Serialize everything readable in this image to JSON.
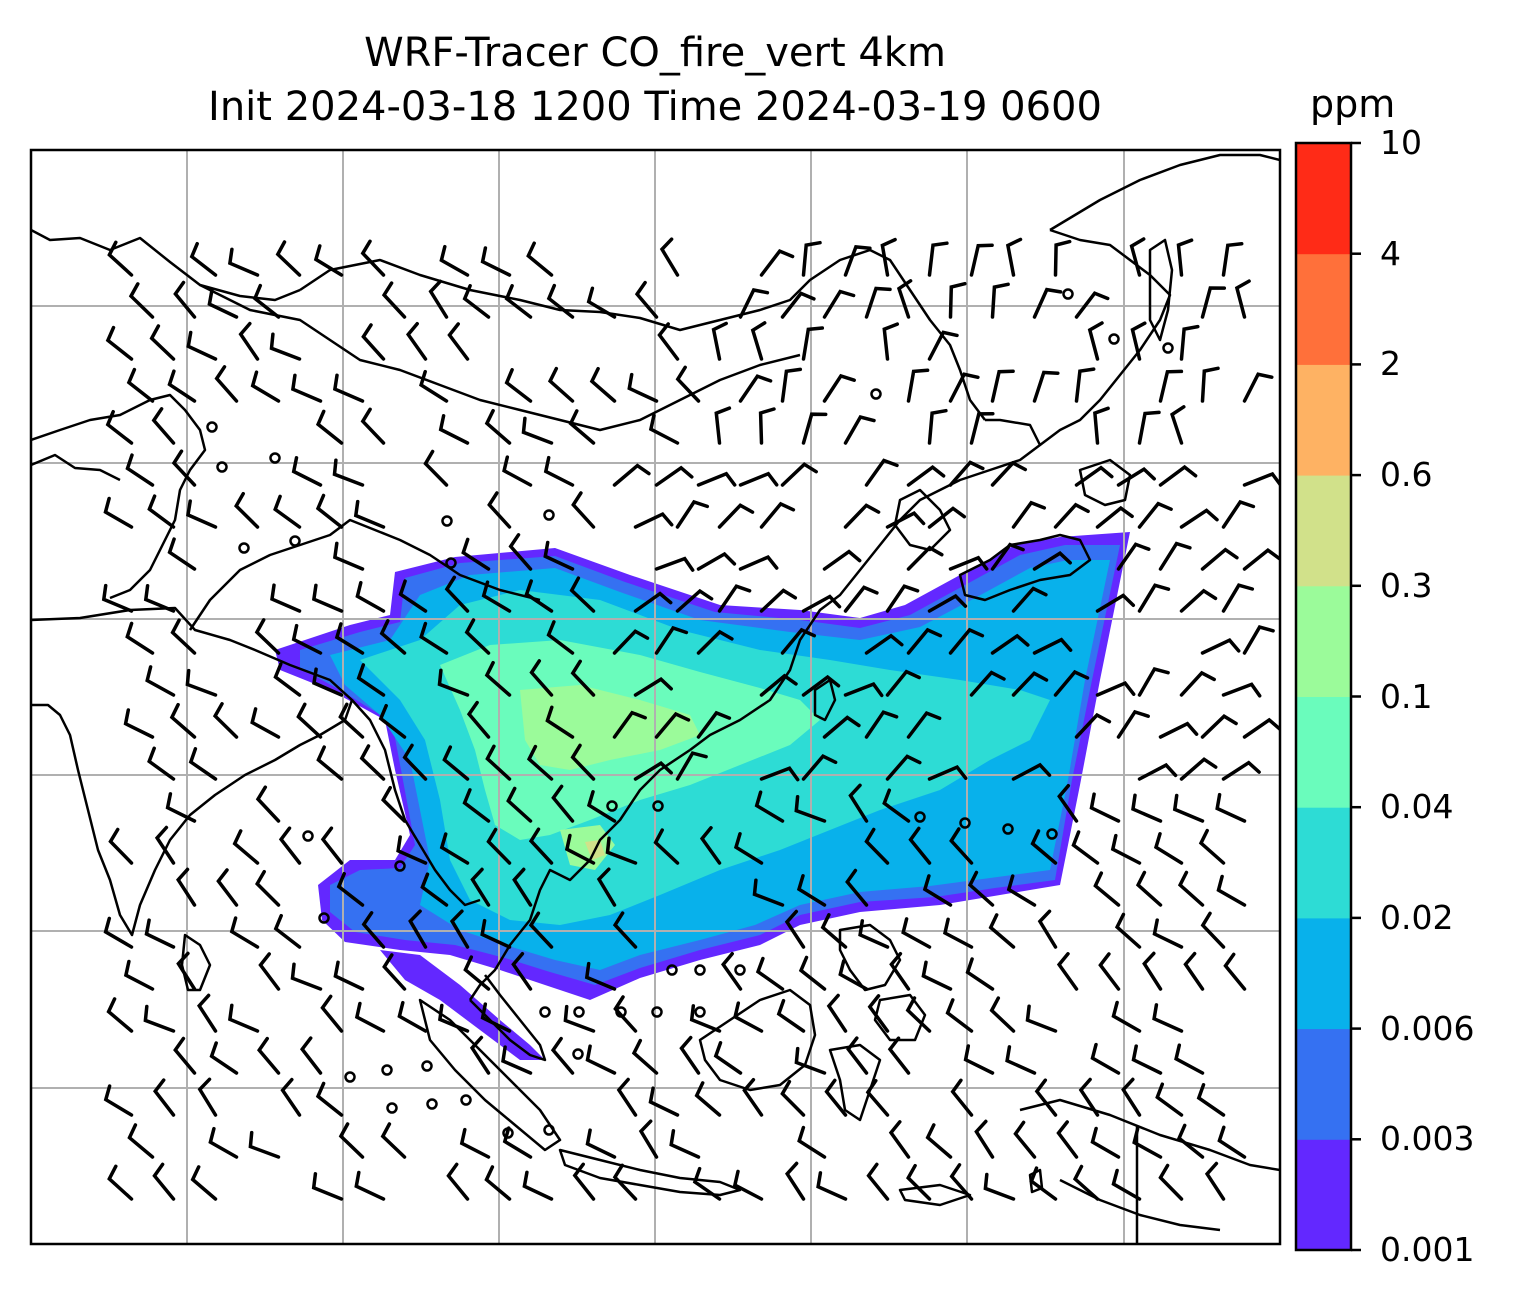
{
  "title": {
    "line1": "WRF-Tracer CO_fire_vert 4km",
    "line2": "Init 2024-03-18 1200 Time 2024-03-19 0600"
  },
  "colorbar": {
    "unit": "ppm",
    "ticks": [
      "0.001",
      "0.003",
      "0.006",
      "0.02",
      "0.04",
      "0.1",
      "0.3",
      "0.6",
      "2",
      "4",
      "10"
    ],
    "colors": [
      "#6328ff",
      "#3571f2",
      "#08b1eb",
      "#2ddcd5",
      "#6afcbc",
      "#9bfb9a",
      "#d1e18a",
      "#feb263",
      "#ff703a",
      "#ff2b17"
    ]
  },
  "map": {
    "land_outline_color": "#000000",
    "gridline_color": "#b0b0b0",
    "wind_barb_color": "#000000"
  }
}
